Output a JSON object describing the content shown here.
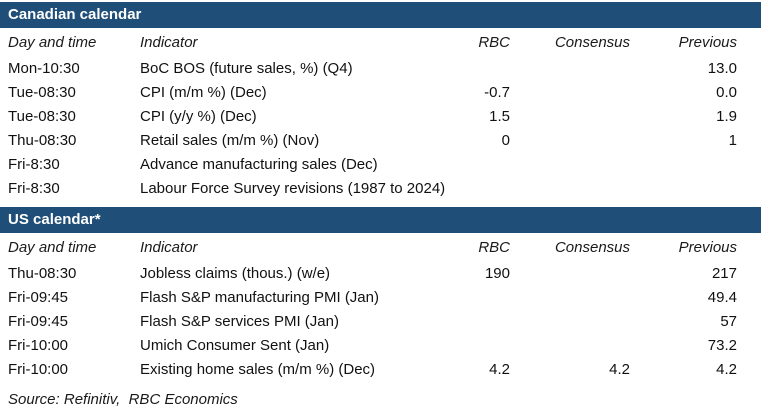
{
  "colors": {
    "section_header_bg": "#1F4E79",
    "section_header_text": "#FFFFFF",
    "body_text": "#111111"
  },
  "columns": {
    "day": "Day and time",
    "indicator": "Indicator",
    "rbc": "RBC",
    "consensus": "Consensus",
    "previous": "Previous"
  },
  "sections": [
    {
      "title": "Canadian calendar",
      "rows": [
        {
          "day": "Mon-10:30",
          "indicator": "BoC BOS (future sales, %) (Q4)",
          "rbc": "",
          "consensus": "",
          "previous": "13.0"
        },
        {
          "day": "Tue-08:30",
          "indicator": "CPI (m/m %) (Dec)",
          "rbc": "-0.7",
          "consensus": "",
          "previous": "0.0"
        },
        {
          "day": "Tue-08:30",
          "indicator": "CPI (y/y %) (Dec)",
          "rbc": "1.5",
          "consensus": "",
          "previous": "1.9"
        },
        {
          "day": "Thu-08:30",
          "indicator": "Retail sales (m/m %) (Nov)",
          "rbc": "0",
          "consensus": "",
          "previous": "1"
        },
        {
          "day": "Fri-8:30",
          "indicator": "Advance manufacturing sales (Dec)",
          "rbc": "",
          "consensus": "",
          "previous": ""
        },
        {
          "day": "Fri-8:30",
          "indicator": "Labour Force Survey revisions (1987 to 2024)",
          "rbc": "",
          "consensus": "",
          "previous": ""
        }
      ]
    },
    {
      "title": "US calendar*",
      "rows": [
        {
          "day": "Thu-08:30",
          "indicator": "Jobless claims (thous.) (w/e)",
          "rbc": "190",
          "consensus": "",
          "previous": "217"
        },
        {
          "day": "Fri-09:45",
          "indicator": "Flash S&P manufacturing PMI (Jan)",
          "rbc": "",
          "consensus": "",
          "previous": "49.4"
        },
        {
          "day": "Fri-09:45",
          "indicator": "Flash S&P services PMI (Jan)",
          "rbc": "",
          "consensus": "",
          "previous": "57"
        },
        {
          "day": "Fri-10:00",
          "indicator": "Umich Consumer Sent (Jan)",
          "rbc": "",
          "consensus": "",
          "previous": "73.2"
        },
        {
          "day": "Fri-10:00",
          "indicator": "Existing home sales (m/m %) (Dec)",
          "rbc": "4.2",
          "consensus": "4.2",
          "previous": "4.2"
        }
      ]
    }
  ],
  "footer": {
    "source": "Source: Refinitiv,  RBC Economics"
  }
}
